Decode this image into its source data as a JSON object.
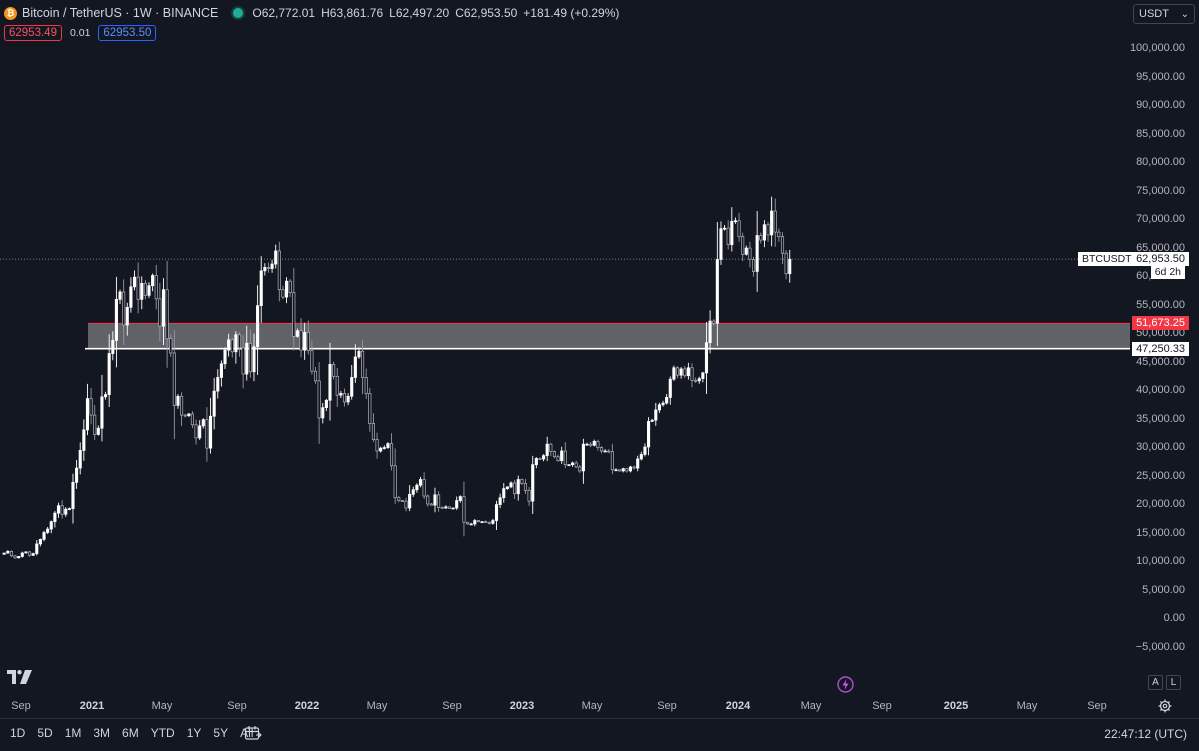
{
  "header": {
    "coin_glyph": "₿",
    "title": "Bitcoin / TetherUS · 1W · BINANCE",
    "ohlc": {
      "open_key": "O",
      "open": "62,772.01",
      "high_key": "H",
      "high": "63,861.76",
      "low_key": "L",
      "low": "62,497.20",
      "close_key": "C",
      "close": "62,953.50",
      "change": "+181.49 (+0.29%)"
    },
    "bid": "62953.49",
    "spread": "0.01",
    "ask": "62953.50",
    "currency": "USDT",
    "currency_chevron": "⌄"
  },
  "labels": {
    "symbol": "BTCUSDT",
    "last_price": "62,953.50",
    "countdown": "6d 2h",
    "resistance": "51,673.25",
    "support": "47,250.33"
  },
  "colors": {
    "background": "#131722",
    "up": "#ffffff",
    "down": "#ffffff",
    "zone_fill": "#6f7073",
    "resistance": "#f23645",
    "support": "#ffffff"
  },
  "time_axis": [
    "Sep",
    "2021",
    "May",
    "Sep",
    "2022",
    "May",
    "Sep",
    "2023",
    "May",
    "Sep",
    "2024",
    "May",
    "Sep",
    "2025",
    "May",
    "Sep"
  ],
  "ranges": [
    "1D",
    "5D",
    "1M",
    "3M",
    "6M",
    "YTD",
    "1Y",
    "5Y",
    "All"
  ],
  "clock": "22:47:12 (UTC)",
  "buttons": {
    "auto": "A",
    "log": "L"
  },
  "chart_data": {
    "type": "candlestick",
    "symbol": "BTCUSDT",
    "interval": "1W",
    "y_ticks": [
      "100,000.00",
      "95,000.00",
      "90,000.00",
      "85,000.00",
      "80,000.00",
      "75,000.00",
      "70,000.00",
      "65,000.00",
      "60,000.00",
      "55,000.00",
      "50,000.00",
      "45,000.00",
      "40,000.00",
      "35,000.00",
      "30,000.00",
      "25,000.00",
      "20,000.00",
      "15,000.00",
      "10,000.00",
      "5,000.00",
      "0.00",
      "−5,000.00"
    ],
    "ylim": [
      -5000,
      100000
    ],
    "last_price": 62953.5,
    "zone": {
      "top": 51673.25,
      "bottom": 47250.33
    },
    "weekly_closes": [
      11400,
      11700,
      10900,
      10550,
      10800,
      11400,
      11600,
      11000,
      11300,
      13000,
      13800,
      15000,
      15600,
      16900,
      18400,
      19700,
      18200,
      19100,
      19200,
      23800,
      26300,
      29400,
      33000,
      38500,
      35600,
      32200,
      33300,
      38800,
      39200,
      46400,
      48700,
      55900,
      57200,
      51400,
      54500,
      58100,
      59800,
      55900,
      58700,
      56600,
      58300,
      60100,
      56000,
      51200,
      57600,
      49000,
      46500,
      37300,
      38900,
      35600,
      35500,
      35800,
      33900,
      31600,
      33700,
      34800,
      29800,
      35400,
      39800,
      42200,
      44600,
      47000,
      48800,
      46700,
      49700,
      47400,
      42800,
      48200,
      43200,
      47600,
      54800,
      60900,
      61500,
      61300,
      62100,
      64400,
      57600,
      56300,
      59100,
      57100,
      49400,
      50400,
      47000,
      50100,
      46900,
      43300,
      41600,
      35100,
      36900,
      38200,
      44500,
      42400,
      39100,
      39400,
      37900,
      38900,
      42200,
      45800,
      46800,
      42200,
      39400,
      34100,
      31300,
      29300,
      29800,
      29900,
      30600,
      26700,
      21100,
      20600,
      20500,
      19300,
      21700,
      22500,
      23300,
      24300,
      21400,
      20000,
      19800,
      21600,
      19400,
      19300,
      19500,
      19200,
      19300,
      20600,
      21300,
      16800,
      16500,
      16500,
      17100,
      16900,
      16900,
      16800,
      16600,
      17100,
      19900,
      21100,
      22700,
      23000,
      23700,
      21800,
      24300,
      23600,
      22400,
      20500,
      26900,
      28000,
      27900,
      28500,
      30500,
      29200,
      28300,
      27600,
      29300,
      26900,
      26900,
      27200,
      26500,
      25800,
      30500,
      30500,
      30300,
      31000,
      29900,
      29300,
      29300,
      29200,
      26000,
      26000,
      25800,
      26200,
      25800,
      26500,
      26300,
      27900,
      28700,
      30000,
      34500,
      34700,
      36500,
      37400,
      37700,
      38700,
      41900,
      43900,
      42600,
      43700,
      42500,
      43900,
      41700,
      41600,
      42000,
      43000,
      48300,
      52100,
      51700,
      62900,
      68300,
      68400,
      65500,
      69600,
      69700,
      66900,
      63800,
      64900,
      62900,
      60800,
      67100,
      66300,
      69000,
      67200,
      71400,
      67700,
      66900,
      64000,
      60400,
      62953.5
    ]
  }
}
